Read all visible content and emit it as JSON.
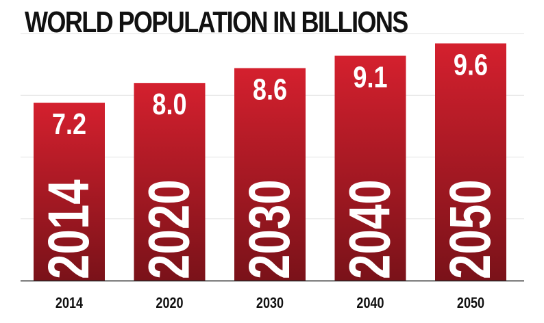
{
  "chart_data": {
    "type": "bar",
    "title": "WORLD POPULATION IN BILLIONS",
    "categories": [
      "2014",
      "2020",
      "2030",
      "2040",
      "2050"
    ],
    "values": [
      7.2,
      8.0,
      8.6,
      9.1,
      9.6
    ],
    "value_labels": [
      "7.2",
      "8.0",
      "8.6",
      "9.1",
      "9.6"
    ],
    "bar_year_labels": [
      "2014",
      "2020",
      "2030",
      "2040",
      "2050"
    ],
    "xlabel": "",
    "ylabel": "",
    "ylim": [
      0,
      10.8
    ],
    "grid": true,
    "colors": {
      "bar_top": "#d4202e",
      "bar_bottom": "#7a1219",
      "axis": "#222222",
      "grid": "#e2e2e2"
    }
  }
}
